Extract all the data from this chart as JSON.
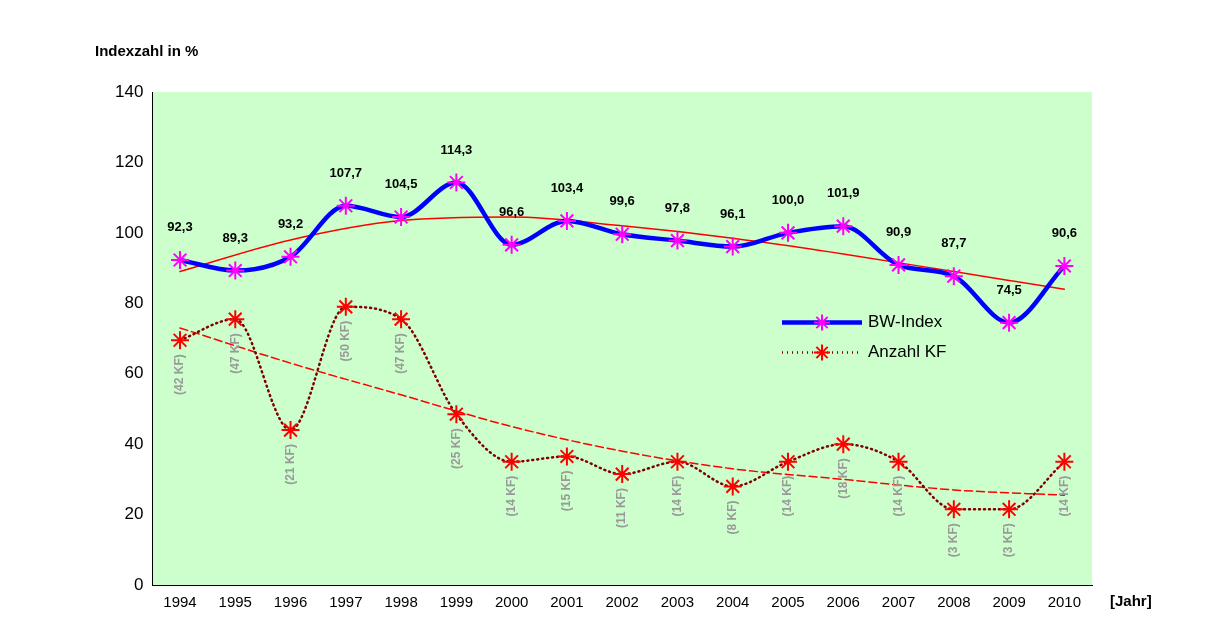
{
  "chart_data": {
    "type": "line",
    "ylabel": "Indexzahl in %",
    "xlabel": "[Jahr]",
    "categories": [
      "1994",
      "1995",
      "1996",
      "1997",
      "1998",
      "1999",
      "2000",
      "2001",
      "2002",
      "2003",
      "2004",
      "2005",
      "2006",
      "2007",
      "2008",
      "2009",
      "2010"
    ],
    "annotations": [
      {
        "text": "(42 KF)",
        "x": "1994",
        "y": 69.5
      },
      {
        "text": "(47 KF)",
        "x": "1995",
        "y": 75.5
      },
      {
        "text": "(21 KF)",
        "x": "1996",
        "y": 44
      },
      {
        "text": "(50 KF)",
        "x": "1997",
        "y": 79
      },
      {
        "text": "(47 KF)",
        "x": "1998",
        "y": 75.5
      },
      {
        "text": "(25 KF)",
        "x": "1999",
        "y": 48.5
      },
      {
        "text": "(14 KF)",
        "x": "2000",
        "y": 35
      },
      {
        "text": "(15 KF)",
        "x": "2001",
        "y": 36.5
      },
      {
        "text": "(11 KF)",
        "x": "2002",
        "y": 31.5
      },
      {
        "text": "(14 KF)",
        "x": "2003",
        "y": 35
      },
      {
        "text": "(8 KF)",
        "x": "2004",
        "y": 28
      },
      {
        "text": "(14 KF)",
        "x": "2005",
        "y": 35
      },
      {
        "text": "(18 KF)",
        "x": "2006",
        "y": 40
      },
      {
        "text": "(14 KF)",
        "x": "2007",
        "y": 35
      },
      {
        "text": "(3 KF)",
        "x": "2008",
        "y": 21.5
      },
      {
        "text": "(3 KF)",
        "x": "2009",
        "y": 21.5
      },
      {
        "text": "(14 KF)",
        "x": "2010",
        "y": 35
      }
    ],
    "ylim": [
      0,
      140
    ],
    "yticks": [
      0,
      20,
      40,
      60,
      80,
      100,
      120,
      140
    ],
    "grid": false,
    "legend": "right",
    "series": [
      {
        "name": "BW-Index",
        "color": "#0000ff",
        "colors": [
          "#ff00ff",
          "#ff00ff",
          "#ff00ff",
          "#ff00ff",
          "#ff00ff",
          "#ff00ff",
          "#ff00ff",
          "#ff00ff",
          "#ff00ff",
          "#ff00ff",
          "#ff00ff",
          "#ff00ff",
          "#ff00ff",
          "#ff00ff",
          "#ff00ff",
          "#ff00ff",
          "#ff00ff"
        ],
        "marker": "cross",
        "line_style": "solid",
        "values": [
          92.3,
          89.3,
          93.2,
          107.7,
          104.5,
          114.3,
          96.6,
          103.4,
          99.6,
          97.8,
          96.1,
          100.0,
          101.9,
          90.9,
          87.7,
          74.5,
          90.6
        ],
        "value_labels": [
          "92,3",
          "89,3",
          "93,2",
          "107,7",
          "104,5",
          "114,3",
          "96,6",
          "103,4",
          "99,6",
          "97,8",
          "96,1",
          "100,0",
          "101,9",
          "90,9",
          "87,7",
          "74,5",
          "90,6"
        ]
      },
      {
        "name": "Anzahl KF",
        "color": "#800000",
        "colors": [
          "#ff0000",
          "#ff0000",
          "#ff0000",
          "#ff0000",
          "#ff0000",
          "#ff0000",
          "#ff0000",
          "#ff0000",
          "#ff0000",
          "#ff0000",
          "#ff0000",
          "#ff0000",
          "#ff0000",
          "#ff0000",
          "#ff0000",
          "#ff0000",
          "#ff0000"
        ],
        "marker": "cross",
        "line_style": "dotted",
        "values": [
          69.5,
          75.5,
          44,
          79,
          75.5,
          48.5,
          35,
          36.5,
          31.5,
          35,
          28,
          35,
          40,
          35,
          21.5,
          21.5,
          35
        ]
      },
      {
        "color": "#ff0000",
        "marker": "none",
        "line_style": "solid",
        "values": [
          89,
          null,
          98,
          null,
          103.5,
          null,
          104.5,
          null,
          102,
          null,
          98.5,
          null,
          94,
          null,
          89,
          null,
          84
        ]
      },
      {
        "color": "#ff0000",
        "marker": "none",
        "line_style": "dashed",
        "values": [
          73,
          null,
          63,
          null,
          54,
          null,
          45,
          null,
          38,
          null,
          33,
          null,
          30,
          null,
          27,
          null,
          25.5
        ]
      }
    ]
  }
}
